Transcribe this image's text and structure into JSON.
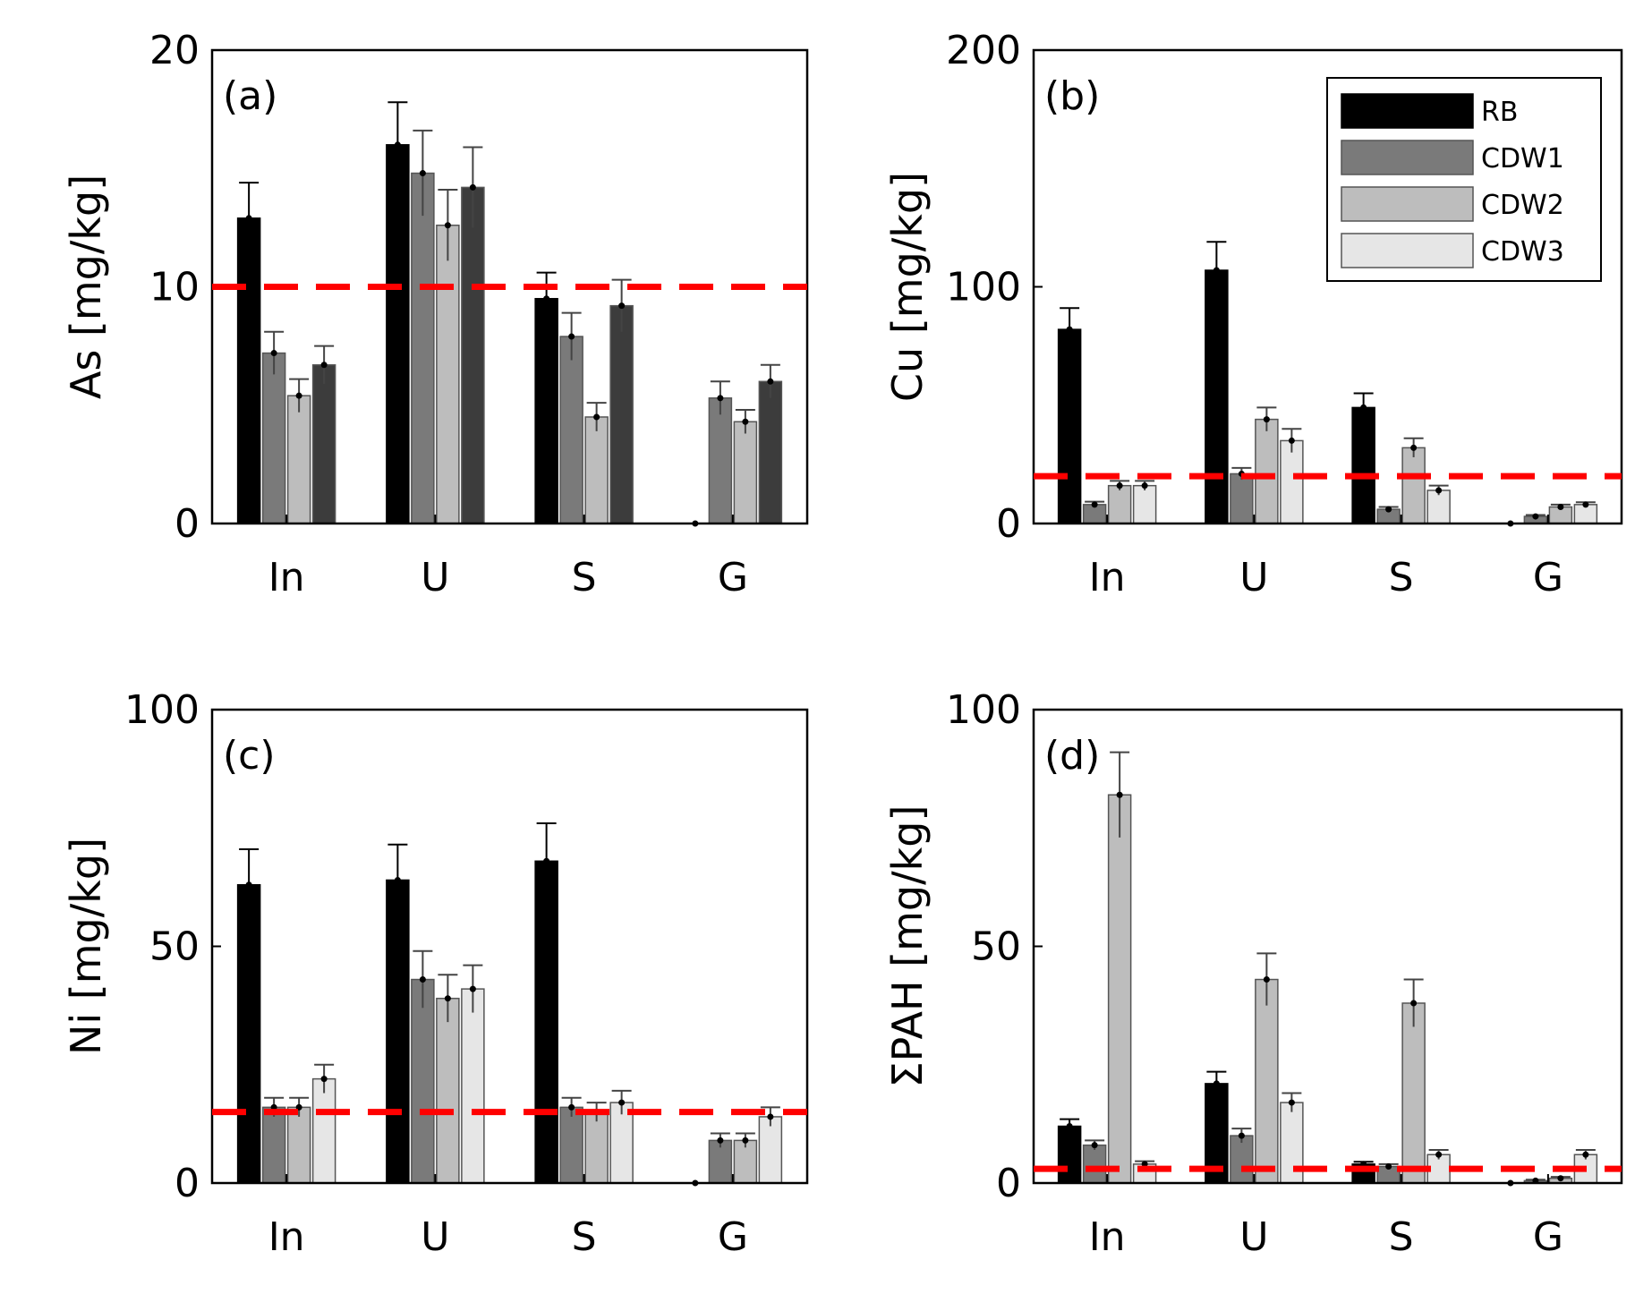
{
  "colors": {
    "RB": "#000000",
    "CDW1": "#7a7a7a",
    "CDW2": "#bdbdbd",
    "CDW3": "#e6e6e6",
    "threshold": "#ff0000",
    "panel_a_CDW3": "#3c3c3c"
  },
  "chart_data": [
    {
      "type": "bar",
      "panel": "(a)",
      "ylabel": "As [mg/kg]",
      "ylim": [
        0,
        20
      ],
      "yticks": [
        "0",
        "10",
        "20"
      ],
      "categories": [
        "In",
        "U",
        "S",
        "G"
      ],
      "threshold": 10,
      "series": [
        {
          "name": "RB",
          "values": [
            12.9,
            16.0,
            9.5,
            0
          ],
          "errors": [
            1.5,
            1.8,
            1.1,
            0
          ]
        },
        {
          "name": "CDW1",
          "values": [
            7.2,
            14.8,
            7.9,
            5.3
          ],
          "errors": [
            0.9,
            1.8,
            1.0,
            0.7
          ]
        },
        {
          "name": "CDW2",
          "values": [
            5.4,
            12.6,
            4.5,
            4.3
          ],
          "errors": [
            0.7,
            1.5,
            0.6,
            0.5
          ]
        },
        {
          "name": "CDW3",
          "values": [
            6.7,
            14.2,
            9.2,
            6.0
          ],
          "errors": [
            0.8,
            1.7,
            1.1,
            0.7
          ]
        }
      ]
    },
    {
      "type": "bar",
      "panel": "(b)",
      "ylabel": "Cu [mg/kg]",
      "ylim": [
        0,
        200
      ],
      "yticks": [
        "0",
        "100",
        "200"
      ],
      "categories": [
        "In",
        "U",
        "S",
        "G"
      ],
      "threshold": 20,
      "legend": [
        "RB",
        "CDW1",
        "CDW2",
        "CDW3"
      ],
      "series": [
        {
          "name": "RB",
          "values": [
            82,
            107,
            49,
            0
          ],
          "errors": [
            9,
            12,
            6,
            0
          ]
        },
        {
          "name": "CDW1",
          "values": [
            8,
            21,
            6,
            3
          ],
          "errors": [
            1.2,
            2.5,
            1,
            0.6
          ]
        },
        {
          "name": "CDW2",
          "values": [
            16,
            44,
            32,
            7
          ],
          "errors": [
            2,
            5,
            4,
            1
          ]
        },
        {
          "name": "CDW3",
          "values": [
            16,
            35,
            14,
            8
          ],
          "errors": [
            2,
            5,
            2,
            1
          ]
        }
      ]
    },
    {
      "type": "bar",
      "panel": "(c)",
      "ylabel": "Ni [mg/kg]",
      "ylim": [
        0,
        100
      ],
      "yticks": [
        "0",
        "50",
        "100"
      ],
      "categories": [
        "In",
        "U",
        "S",
        "G"
      ],
      "threshold": 15,
      "series": [
        {
          "name": "RB",
          "values": [
            63,
            64,
            68,
            0
          ],
          "errors": [
            7.5,
            7.5,
            8,
            0
          ]
        },
        {
          "name": "CDW1",
          "values": [
            16,
            43,
            16,
            9
          ],
          "errors": [
            2,
            6,
            2,
            1.5
          ]
        },
        {
          "name": "CDW2",
          "values": [
            16,
            39,
            15,
            9
          ],
          "errors": [
            2,
            5,
            2,
            1.5
          ]
        },
        {
          "name": "CDW3",
          "values": [
            22,
            41,
            17,
            14
          ],
          "errors": [
            3,
            5,
            2.5,
            2
          ]
        }
      ]
    },
    {
      "type": "bar",
      "panel": "(d)",
      "ylabel": "ΣPAH [mg/kg]",
      "ylim": [
        0,
        100
      ],
      "yticks": [
        "0",
        "50",
        "100"
      ],
      "categories": [
        "In",
        "U",
        "S",
        "G"
      ],
      "threshold": 3,
      "series": [
        {
          "name": "RB",
          "values": [
            12,
            21,
            4,
            0
          ],
          "errors": [
            1.5,
            2.5,
            0.5,
            0
          ]
        },
        {
          "name": "CDW1",
          "values": [
            8,
            10,
            3.5,
            0.5
          ],
          "errors": [
            1,
            1.5,
            0.5,
            0.2
          ]
        },
        {
          "name": "CDW2",
          "values": [
            82,
            43,
            38,
            1
          ],
          "errors": [
            9,
            5.5,
            5,
            0.3
          ]
        },
        {
          "name": "CDW3",
          "values": [
            4,
            17,
            6,
            6
          ],
          "errors": [
            0.6,
            2,
            1,
            1
          ]
        }
      ]
    }
  ]
}
